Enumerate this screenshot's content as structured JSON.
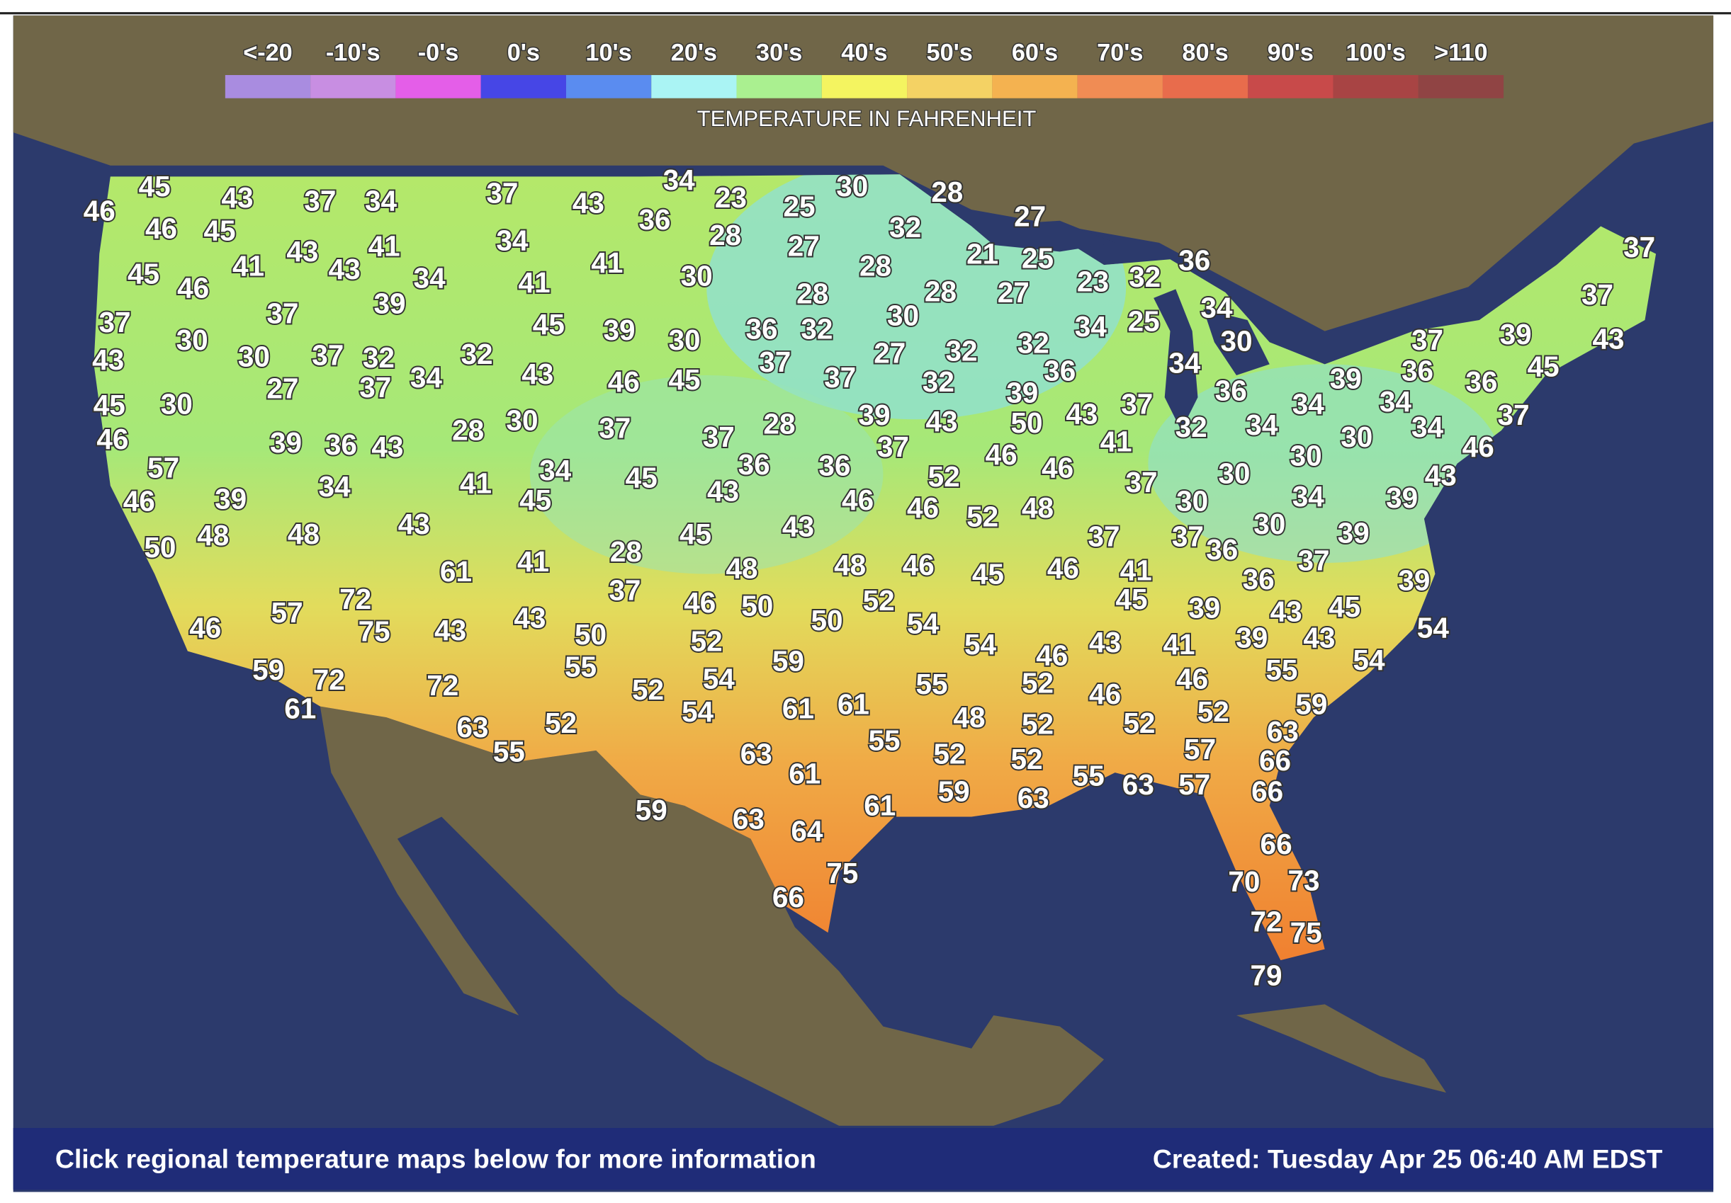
{
  "legend": {
    "labels": [
      "<-20",
      "-10's",
      "-0's",
      "0's",
      "10's",
      "20's",
      "30's",
      "40's",
      "50's",
      "60's",
      "70's",
      "80's",
      "90's",
      "100's",
      ">110"
    ],
    "colors": [
      "#a98ce0",
      "#c88ee2",
      "#e45ee8",
      "#4646e6",
      "#5a8cf0",
      "#aaf4f4",
      "#aaf090",
      "#f4f460",
      "#f4d264",
      "#f4b250",
      "#f08c54",
      "#e86c4c",
      "#c84a4a",
      "#a84444",
      "#904444"
    ],
    "title": "TEMPERATURE IN FAHRENHEIT"
  },
  "temperatures": [
    46,
    45,
    43,
    37,
    34,
    37,
    43,
    34,
    36,
    23,
    25,
    30,
    28,
    46,
    45,
    32,
    27,
    28,
    27,
    34,
    41,
    43,
    45,
    46,
    41,
    43,
    34,
    41,
    41,
    30,
    28,
    21,
    25,
    23,
    32,
    36,
    37,
    28,
    28,
    27,
    37,
    37,
    39,
    30,
    34,
    37,
    34,
    25,
    30,
    30,
    37,
    32,
    45,
    39,
    30,
    36,
    32,
    30,
    37,
    39,
    43,
    43,
    27,
    32,
    32,
    32,
    45,
    34,
    37,
    27,
    34,
    43,
    46,
    45,
    37,
    37,
    32,
    36,
    39,
    36,
    36,
    45,
    30,
    39,
    36,
    34,
    34,
    37,
    43,
    50,
    43,
    39,
    28,
    37,
    37,
    30,
    28,
    46,
    39,
    36,
    43,
    37,
    34,
    30,
    46,
    34,
    32,
    41,
    46,
    46,
    37,
    57,
    34,
    45,
    36,
    36,
    30,
    30,
    37,
    43,
    52,
    41,
    34,
    46,
    39,
    45,
    43,
    46,
    46,
    52,
    48,
    34,
    39,
    30,
    43,
    30,
    39,
    37,
    37,
    36,
    37,
    50,
    48,
    48,
    45,
    43,
    28,
    41,
    61,
    48,
    48,
    46,
    45,
    46,
    41,
    36,
    39,
    37,
    72,
    75,
    57,
    46,
    43,
    43,
    46,
    50,
    50,
    50,
    52,
    54,
    45,
    39,
    43,
    45,
    54,
    54,
    43,
    41,
    39,
    43,
    54,
    46,
    52,
    55,
    59,
    59,
    72,
    72,
    52,
    54,
    55,
    52,
    46,
    46,
    55,
    59,
    52,
    52,
    52,
    48,
    61,
    54,
    61,
    61,
    63,
    55,
    52,
    63,
    55,
    52,
    52,
    63,
    57,
    66,
    61,
    55,
    63,
    57,
    66,
    59,
    63,
    61,
    59,
    63,
    64,
    75,
    66,
    66,
    70,
    73,
    72,
    75,
    79
  ],
  "footer": {
    "left": "Click regional temperature maps below for more information",
    "right": "Created: Tuesday Apr 25 06:40 AM EDST"
  }
}
